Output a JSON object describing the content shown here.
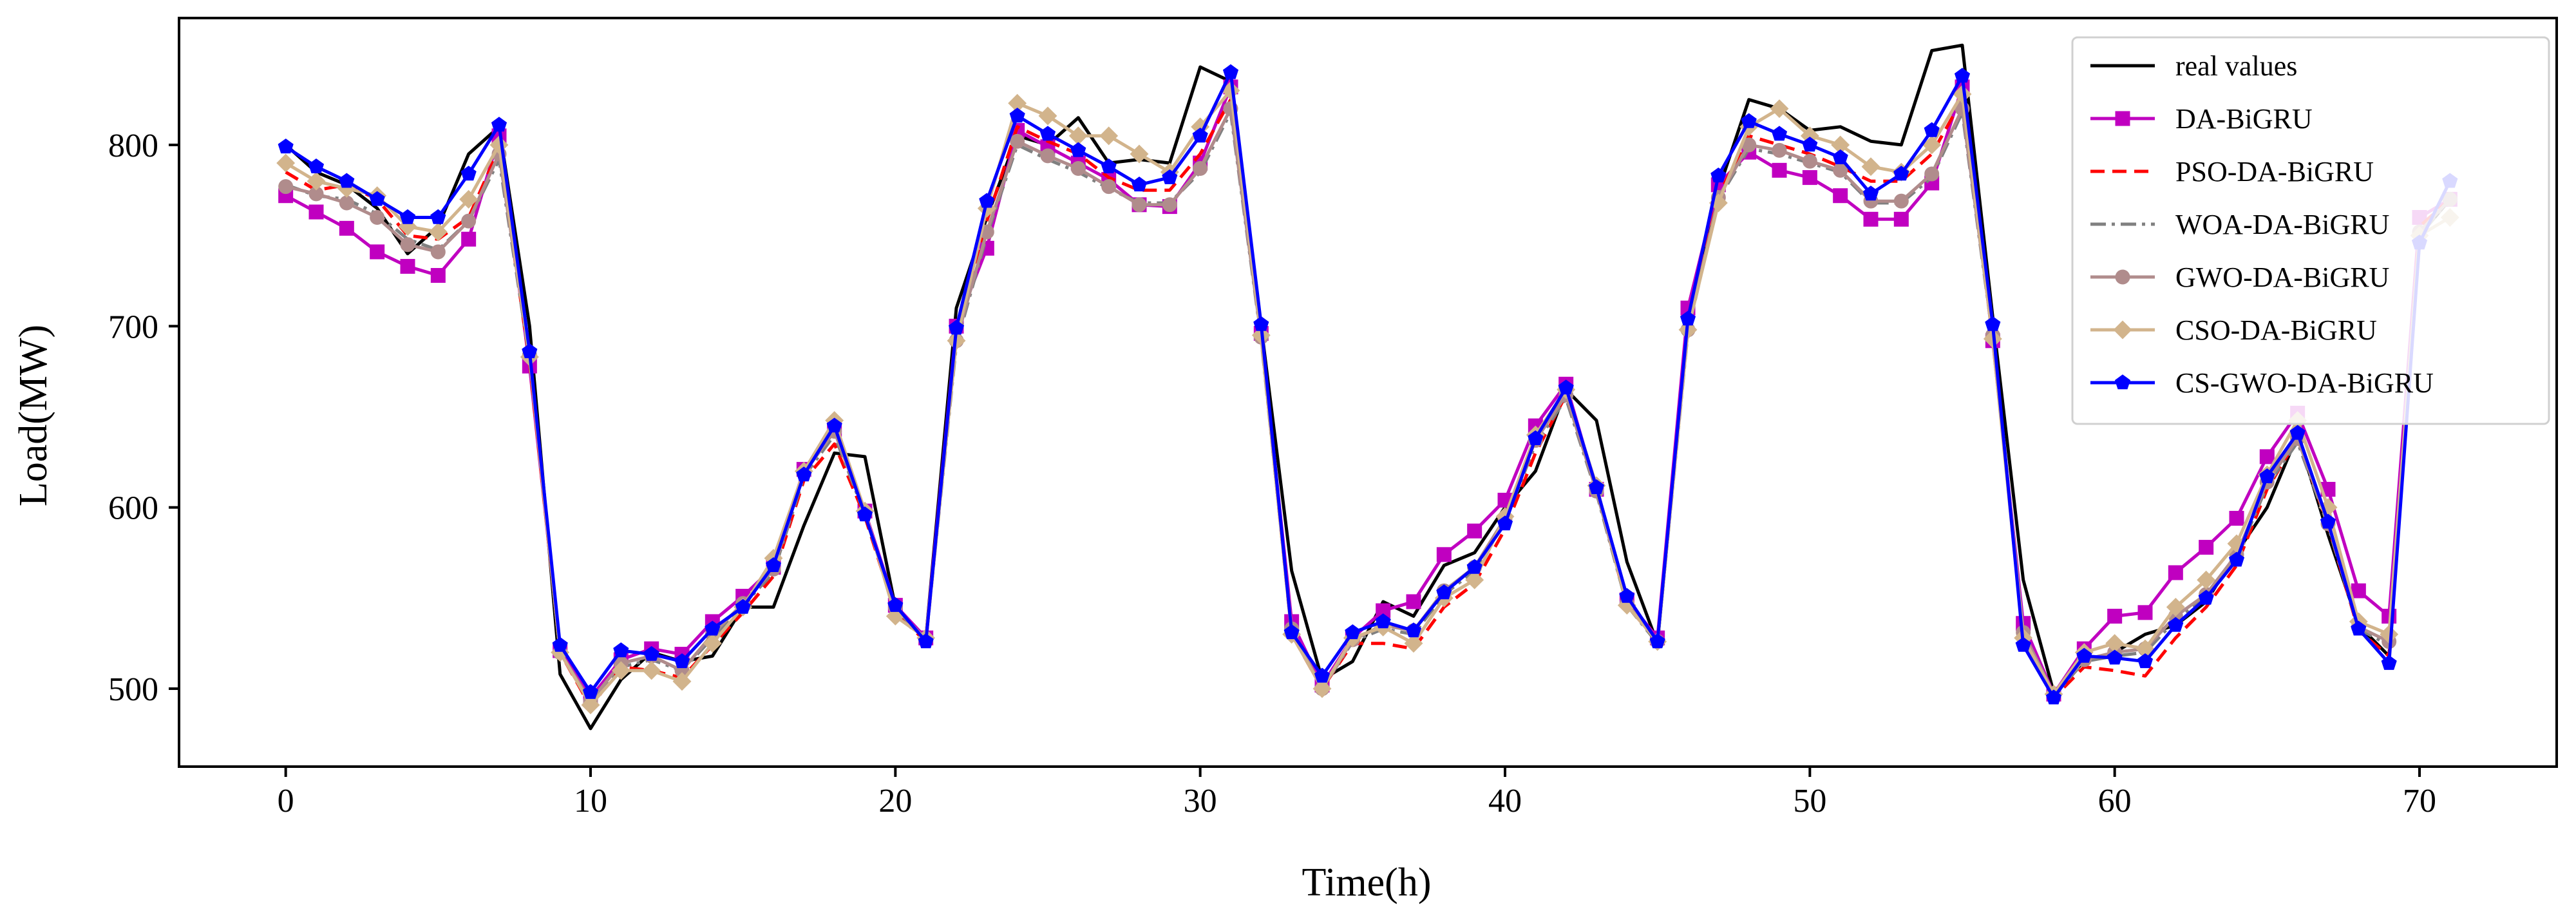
{
  "chart_data": {
    "type": "line",
    "title": "",
    "xlabel": "Time(h)",
    "ylabel": "Load(MW)",
    "xlim": [
      -3.5,
      74.5
    ],
    "ylim": [
      457,
      870
    ],
    "xticks": [
      0,
      10,
      20,
      30,
      40,
      50,
      60,
      70
    ],
    "yticks": [
      500,
      600,
      700,
      800
    ],
    "grid": false,
    "legend_position": "top-right",
    "series": [
      {
        "name": "real values",
        "color": "#000000",
        "dash": "solid",
        "marker": "none",
        "values": [
          800,
          785,
          778,
          765,
          740,
          755,
          795,
          810,
          700,
          508,
          478,
          505,
          520,
          515,
          518,
          545,
          545,
          590,
          630,
          628,
          545,
          528,
          710,
          760,
          805,
          800,
          815,
          790,
          792,
          790,
          843,
          835,
          700,
          565,
          505,
          515,
          548,
          540,
          568,
          575,
          600,
          620,
          665,
          648,
          570,
          525,
          700,
          775,
          825,
          820,
          808,
          810,
          802,
          800,
          852,
          855,
          705,
          560,
          498,
          515,
          520,
          530,
          535,
          548,
          575,
          600,
          640,
          585,
          535,
          518,
          750,
          770
        ]
      },
      {
        "name": "DA-BiGRU",
        "color": "#c000c0",
        "dash": "solid",
        "marker": "square",
        "values": [
          772,
          763,
          754,
          741,
          733,
          728,
          748,
          805,
          678,
          521,
          495,
          516,
          522,
          519,
          537,
          551,
          567,
          621,
          643,
          598,
          546,
          528,
          700,
          743,
          808,
          799,
          790,
          781,
          767,
          766,
          790,
          832,
          696,
          537,
          502,
          528,
          543,
          548,
          574,
          587,
          604,
          645,
          668,
          610,
          549,
          528,
          710,
          778,
          796,
          786,
          782,
          772,
          759,
          759,
          779,
          832,
          692,
          536,
          497,
          522,
          540,
          542,
          564,
          578,
          594,
          628,
          652,
          610,
          554,
          540,
          760,
          770
        ]
      },
      {
        "name": "PSO-DA-BiGRU",
        "color": "#ff0000",
        "dash": "dashed",
        "marker": "none",
        "values": [
          785,
          775,
          778,
          770,
          750,
          748,
          760,
          798,
          680,
          520,
          490,
          512,
          510,
          506,
          524,
          542,
          562,
          615,
          635,
          595,
          542,
          526,
          695,
          758,
          810,
          802,
          795,
          782,
          775,
          775,
          795,
          825,
          695,
          530,
          500,
          525,
          525,
          522,
          545,
          558,
          588,
          630,
          662,
          610,
          546,
          526,
          700,
          772,
          805,
          800,
          795,
          788,
          780,
          780,
          795,
          825,
          695,
          528,
          495,
          512,
          510,
          507,
          528,
          545,
          568,
          610,
          638,
          590,
          532,
          518,
          755,
          770
        ]
      },
      {
        "name": "WOA-DA-BiGRU",
        "color": "#808080",
        "dash": "dashdot",
        "marker": "none",
        "values": [
          778,
          772,
          770,
          762,
          748,
          742,
          758,
          792,
          682,
          520,
          492,
          512,
          516,
          510,
          528,
          546,
          564,
          617,
          640,
          596,
          544,
          527,
          690,
          750,
          800,
          792,
          785,
          776,
          768,
          768,
          785,
          818,
          693,
          532,
          500,
          526,
          533,
          530,
          552,
          565,
          592,
          635,
          660,
          608,
          546,
          525,
          697,
          770,
          798,
          795,
          790,
          785,
          768,
          768,
          782,
          818,
          694,
          530,
          496,
          515,
          518,
          520,
          538,
          550,
          572,
          612,
          636,
          590,
          533,
          524,
          750,
          770
        ]
      },
      {
        "name": "GWO-DA-BiGRU",
        "color": "#b08c8c",
        "dash": "solid",
        "marker": "circle",
        "values": [
          777,
          773,
          768,
          760,
          745,
          741,
          758,
          795,
          684,
          520,
          493,
          514,
          518,
          510,
          530,
          547,
          566,
          619,
          642,
          597,
          545,
          527,
          692,
          752,
          802,
          794,
          787,
          777,
          767,
          767,
          787,
          820,
          694,
          533,
          500,
          527,
          535,
          532,
          554,
          567,
          594,
          637,
          662,
          609,
          547,
          526,
          698,
          771,
          800,
          797,
          791,
          786,
          769,
          769,
          784,
          820,
          695,
          531,
          497,
          516,
          520,
          522,
          540,
          552,
          574,
          614,
          638,
          591,
          534,
          526,
          752,
          770
        ]
      },
      {
        "name": "CSO-DA-BiGRU",
        "color": "#d2b48c",
        "dash": "solid",
        "marker": "diamond",
        "values": [
          790,
          780,
          776,
          772,
          755,
          752,
          770,
          800,
          683,
          520,
          491,
          510,
          510,
          504,
          525,
          545,
          572,
          620,
          648,
          598,
          540,
          528,
          692,
          765,
          823,
          816,
          805,
          805,
          795,
          785,
          810,
          830,
          695,
          530,
          500,
          528,
          534,
          525,
          550,
          560,
          595,
          640,
          665,
          612,
          546,
          526,
          698,
          768,
          810,
          820,
          805,
          800,
          788,
          785,
          800,
          828,
          693,
          528,
          497,
          520,
          525,
          522,
          545,
          560,
          580,
          618,
          648,
          600,
          537,
          530,
          750,
          760
        ]
      },
      {
        "name": "CS-GWO-DA-BiGRU",
        "color": "#0000ff",
        "dash": "solid",
        "marker": "pentagon",
        "values": [
          799,
          788,
          780,
          770,
          760,
          760,
          784,
          811,
          686,
          524,
          498,
          521,
          519,
          515,
          533,
          545,
          568,
          618,
          645,
          596,
          546,
          526,
          699,
          769,
          816,
          806,
          797,
          788,
          778,
          782,
          805,
          840,
          701,
          531,
          507,
          531,
          537,
          532,
          553,
          567,
          591,
          638,
          666,
          611,
          551,
          526,
          704,
          783,
          813,
          806,
          800,
          793,
          773,
          784,
          808,
          838,
          701,
          524,
          495,
          518,
          517,
          515,
          535,
          550,
          571,
          617,
          641,
          592,
          533,
          514,
          746,
          780
        ]
      }
    ]
  }
}
